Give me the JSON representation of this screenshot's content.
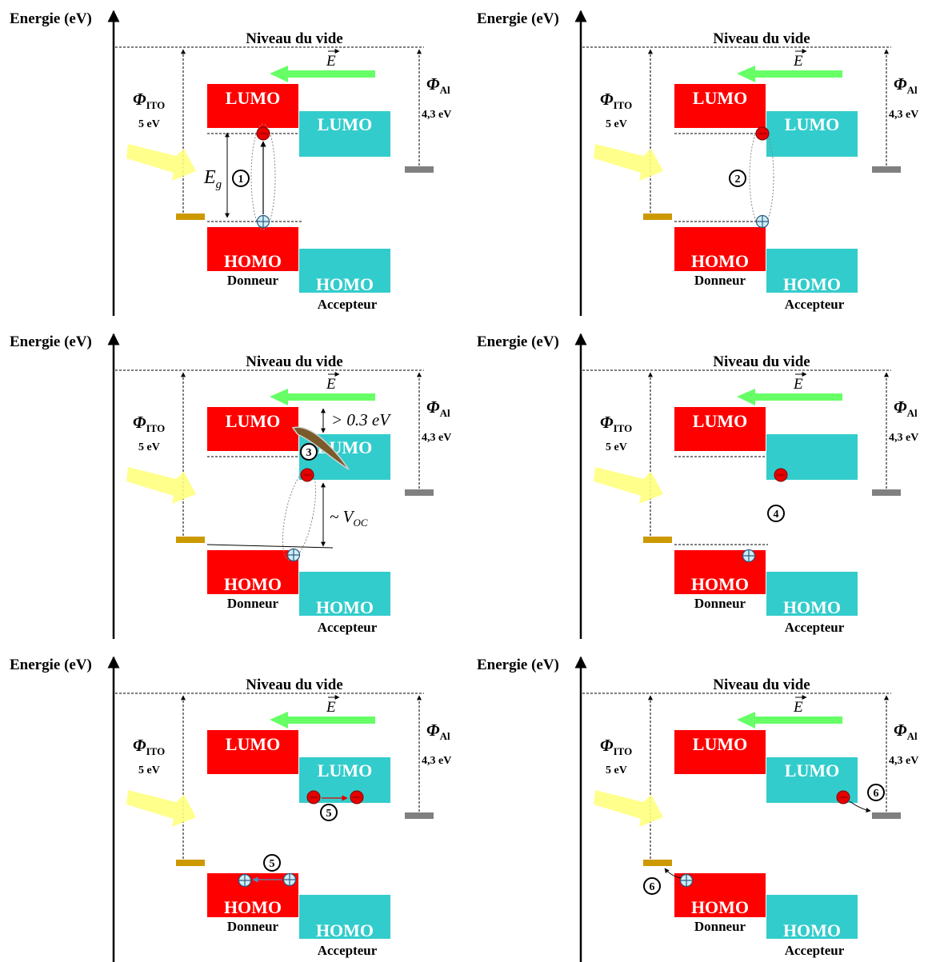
{
  "labels": {
    "energy_axis": "Energie (eV)",
    "vacuum_level": "Niveau du vide",
    "field": "E",
    "phi_ito_symbol": "Φ",
    "phi_ito_sub": "ITO",
    "phi_ito_value": "5 eV",
    "phi_al_symbol": "Φ",
    "phi_al_sub": "Al",
    "phi_al_value": "4,3 eV",
    "lumo": "LUMO",
    "homo": "HOMO",
    "donor": "Donneur",
    "acceptor": "Accepteur",
    "eg_symbol": "E",
    "eg_sub": "g",
    "offset": "> 0.3 eV",
    "voc_prefix": "~ V",
    "voc_sub": "OC"
  },
  "panels": [
    {
      "step": "1",
      "extra_step": ""
    },
    {
      "step": "2",
      "extra_step": ""
    },
    {
      "step": "3",
      "extra_step": ""
    },
    {
      "step": "4",
      "extra_step": ""
    },
    {
      "step": "5",
      "extra_step": "5"
    },
    {
      "step": "6",
      "extra_step": "6"
    }
  ],
  "colors": {
    "donor": "#ff0000",
    "acceptor": "#33cccc",
    "field_arrow": "#66ff66",
    "light_arrow": "#ffff80",
    "ito_electrode": "#cc9900",
    "al_electrode": "#808080",
    "electron": "#e60000",
    "hole": "#cfeef7"
  }
}
